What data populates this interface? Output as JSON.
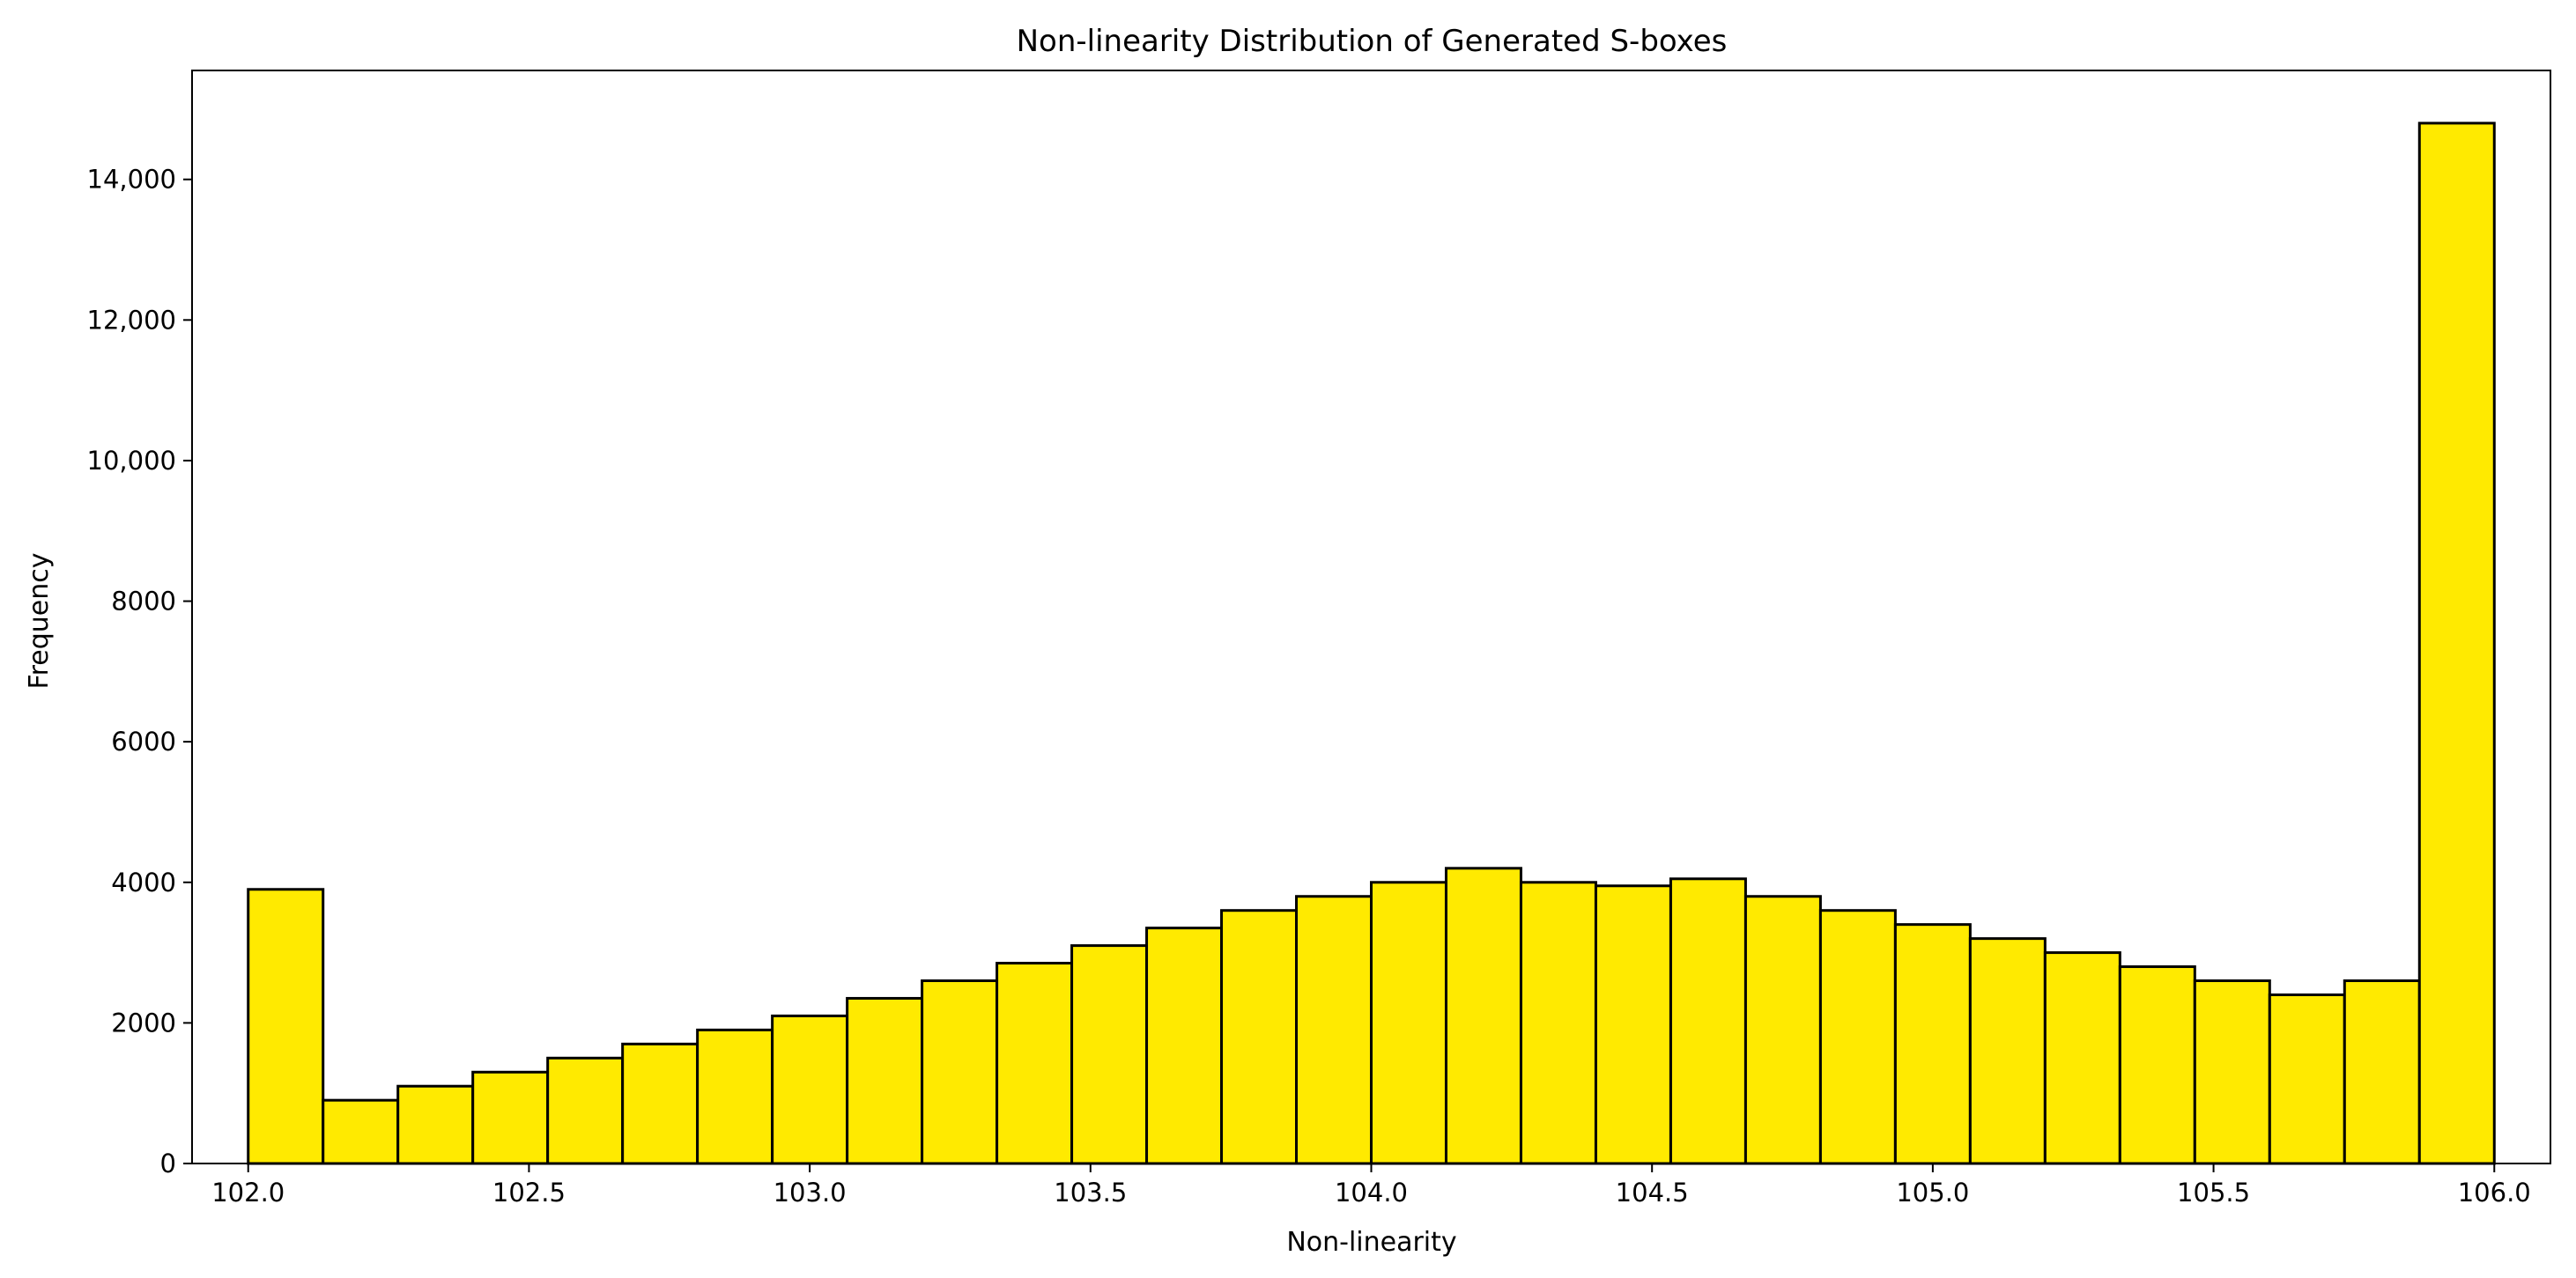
{
  "chart_data": {
    "type": "bar",
    "title": "Non-linearity Distribution of Generated S-boxes",
    "xlabel": "Non-linearity",
    "ylabel": "Frequency",
    "xlim": [
      101.9,
      106.1
    ],
    "ylim": [
      0,
      15550
    ],
    "x_ticks": [
      {
        "value": 102.0,
        "label": "102.0"
      },
      {
        "value": 102.5,
        "label": "102.5"
      },
      {
        "value": 103.0,
        "label": "103.0"
      },
      {
        "value": 103.5,
        "label": "103.5"
      },
      {
        "value": 104.0,
        "label": "104.0"
      },
      {
        "value": 104.5,
        "label": "104.5"
      },
      {
        "value": 105.0,
        "label": "105.0"
      },
      {
        "value": 105.5,
        "label": "105.5"
      },
      {
        "value": 106.0,
        "label": "106.0"
      }
    ],
    "y_ticks": [
      {
        "value": 0,
        "label": "0"
      },
      {
        "value": 2000,
        "label": "2000"
      },
      {
        "value": 4000,
        "label": "4000"
      },
      {
        "value": 6000,
        "label": "6000"
      },
      {
        "value": 8000,
        "label": "8000"
      },
      {
        "value": 10000,
        "label": "10,000"
      },
      {
        "value": 12000,
        "label": "12,000"
      },
      {
        "value": 14000,
        "label": "14,000"
      }
    ],
    "bin_range": [
      102.0,
      106.0
    ],
    "bin_count": 30,
    "values": [
      3900,
      900,
      1100,
      1300,
      1500,
      1700,
      1900,
      2100,
      2350,
      2600,
      2850,
      3100,
      3350,
      3600,
      3800,
      4000,
      4200,
      4000,
      3950,
      4050,
      3800,
      3600,
      3400,
      3200,
      3000,
      2800,
      2600,
      2400,
      2600,
      14800
    ],
    "bar_color": "#ffea00",
    "edge_color": "#000000",
    "grid": false,
    "legend": "none"
  }
}
